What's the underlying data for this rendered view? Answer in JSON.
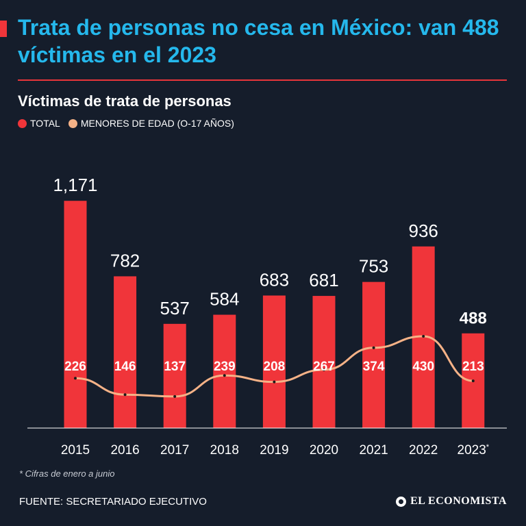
{
  "header": {
    "title": "Trata de personas no cesa en México: van 488 víctimas en el 2023"
  },
  "chart_data": {
    "type": "bar",
    "title": "Víctimas de trata de personas",
    "categories": [
      "2015",
      "2016",
      "2017",
      "2018",
      "2019",
      "2020",
      "2021",
      "2022",
      "2023*"
    ],
    "series": [
      {
        "name": "TOTAL",
        "type": "bar",
        "color": "#f0353a",
        "values": [
          1171,
          782,
          537,
          584,
          683,
          681,
          753,
          936,
          488
        ],
        "labels": [
          "1,171",
          "782",
          "537",
          "584",
          "683",
          "681",
          "753",
          "936",
          "488"
        ]
      },
      {
        "name": "MENORES DE EDAD (O-17 AÑOS)",
        "type": "line",
        "color": "#f5b287",
        "values": [
          226,
          146,
          137,
          239,
          208,
          267,
          374,
          430,
          213
        ]
      }
    ],
    "highlight_category": "2023*",
    "ylim": [
      0,
      1200
    ],
    "xlabel": "",
    "ylabel": "",
    "legend_position": "top-left",
    "grid": false
  },
  "footnote": "* Cifras de enero a junio",
  "source": "FUENTE: SECRETARIADO EJECUTIVO",
  "brand": "EL ECONOMISTA",
  "colors": {
    "background": "#151d2b",
    "title": "#25b8ec",
    "accent": "#f0353a",
    "line": "#f5b287"
  }
}
